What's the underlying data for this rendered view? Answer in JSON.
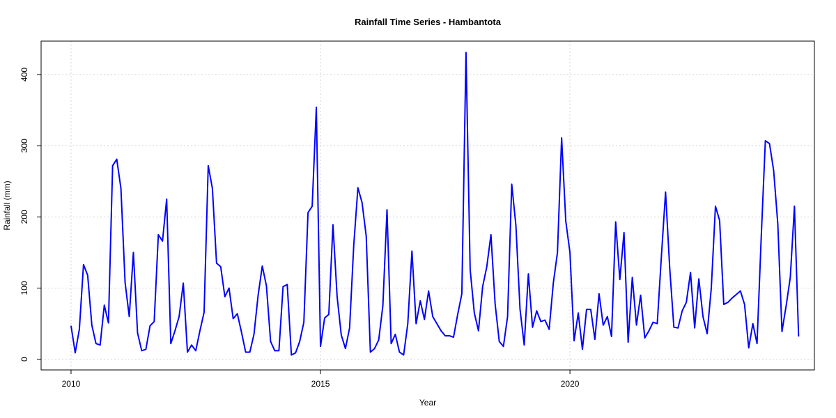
{
  "chart_data": {
    "type": "line",
    "title": "Rainfall Time Series - Hambantota",
    "xlabel": "Year",
    "ylabel": "Rainfall (mm)",
    "xlim": [
      2009.4,
      2024.9
    ],
    "ylim": [
      -15,
      447
    ],
    "x_ticks": [
      2010,
      2015,
      2020
    ],
    "x_tick_labels": [
      "2010",
      "2015",
      "2020"
    ],
    "y_ticks": [
      0,
      100,
      200,
      300,
      400
    ],
    "y_tick_labels": [
      "0",
      "100",
      "200",
      "300",
      "400"
    ],
    "grid": true,
    "grid_style": "dotted",
    "line_color": "#0000ff",
    "series": [
      {
        "start": 2010.0,
        "step": 0.0833333,
        "values": [
          47,
          9,
          42,
          133,
          118,
          48,
          22,
          20,
          76,
          51,
          272,
          281,
          240,
          108,
          60,
          150,
          37,
          12,
          14,
          47,
          53,
          175,
          166,
          225,
          22,
          40,
          60,
          107,
          10,
          20,
          12,
          40,
          66,
          272,
          240,
          135,
          130,
          88,
          100,
          57,
          64,
          38,
          10,
          10,
          35,
          90,
          131,
          103,
          25,
          12,
          12,
          102,
          105,
          6,
          9,
          25,
          52,
          206,
          215,
          354,
          18,
          58,
          63,
          189,
          88,
          34,
          15,
          44,
          160,
          241,
          220,
          173,
          10,
          15,
          27,
          75,
          210,
          22,
          35,
          10,
          6,
          50,
          152,
          50,
          82,
          56,
          96,
          60,
          50,
          40,
          33,
          33,
          31,
          63,
          92,
          431,
          126,
          65,
          40,
          102,
          130,
          175,
          78,
          25,
          18,
          60,
          246,
          188,
          70,
          20,
          120,
          45,
          68,
          53,
          55,
          42,
          107,
          150,
          311,
          194,
          150,
          26,
          65,
          14,
          70,
          70,
          28,
          92,
          48,
          60,
          32,
          193,
          112,
          178,
          24,
          115,
          48,
          90,
          30,
          40,
          52,
          50,
          145,
          235,
          128,
          45,
          44,
          68,
          80,
          122,
          44,
          113,
          60,
          36,
          100,
          215,
          195,
          77,
          80,
          86,
          91,
          96,
          77,
          16,
          50,
          22,
          170,
          307,
          303,
          265,
          190,
          39,
          75,
          115,
          215,
          32
        ]
      }
    ]
  }
}
